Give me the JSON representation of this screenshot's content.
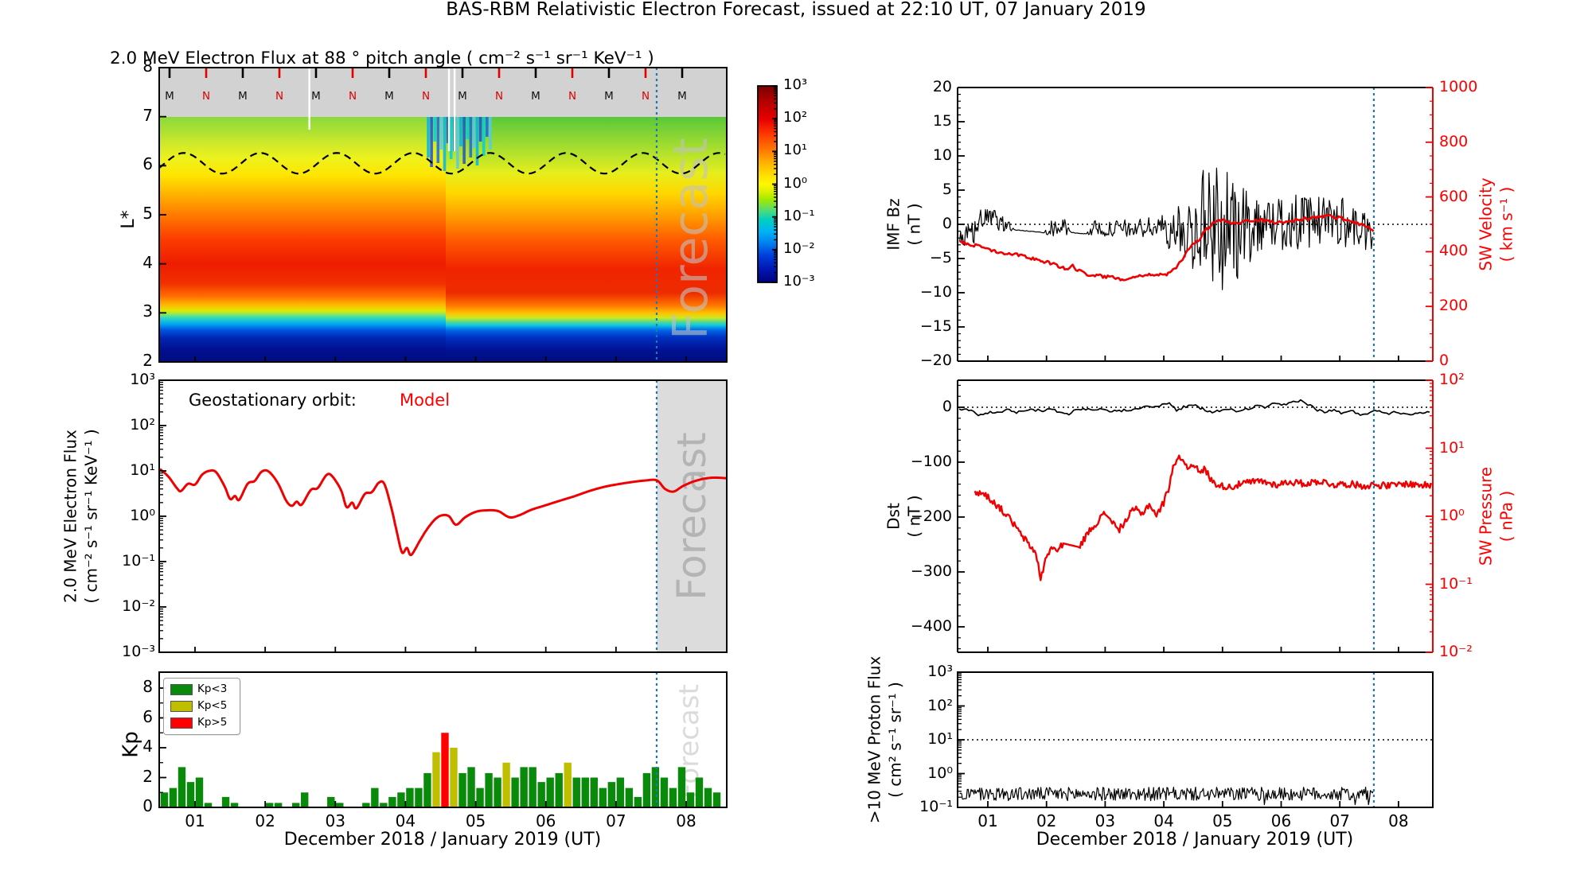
{
  "title": "BAS-RBM Relativistic Electron Forecast, issued at 22:10 UT, 07 January 2019",
  "xlabel": "December 2018 / January 2019 (UT)",
  "x_day_ticks": [
    "01",
    "02",
    "03",
    "04",
    "05",
    "06",
    "07",
    "08"
  ],
  "forecast": {
    "label": "Forecast",
    "start_day": 7.58
  },
  "colors": {
    "model_red": "#f00000",
    "forecast_line_blue": "#1f77b4",
    "kp_green": "#0a8a0a",
    "kp_yellow": "#bfbf00",
    "kp_red": "#ff0000",
    "gray_band": "#d2d2d2",
    "forecast_shade": "#dcdcdc"
  },
  "spectrogram": {
    "title": "2.0 MeV Electron Flux at 88 ° pitch angle ( cm⁻² s⁻¹ sr⁻¹ KeV⁻¹ )",
    "ylabel": "L*",
    "yticks": [
      "8",
      "7",
      "6",
      "5",
      "4",
      "3",
      "2"
    ],
    "marker_labels": [
      "M",
      "N",
      "M",
      "N",
      "M",
      "N",
      "M",
      "N",
      "M",
      "N",
      "M",
      "N",
      "M",
      "N",
      "M"
    ],
    "colorbar_ticks": [
      "10³",
      "10²",
      "10¹",
      "10⁰",
      "10⁻¹",
      "10⁻²",
      "10⁻³"
    ]
  },
  "electron_flux": {
    "ylabel_line1": "2.0 MeV Electron Flux",
    "ylabel_line2": "( cm⁻² s⁻¹ sr⁻¹ KeV⁻¹ )",
    "legend_prefix": "Geostationary orbit:",
    "legend_model": "Model",
    "yticks": [
      "10³",
      "10²",
      "10¹",
      "10⁰",
      "10⁻¹",
      "10⁻²",
      "10⁻³"
    ]
  },
  "kp": {
    "ylabel": "Kp",
    "yticks": [
      "8",
      "6",
      "4",
      "2",
      "0"
    ],
    "legend": [
      {
        "label": "Kp<3",
        "color": "#0a8a0a"
      },
      {
        "label": "Kp<5",
        "color": "#bfbf00"
      },
      {
        "label": "Kp>5",
        "color": "#ff0000"
      }
    ]
  },
  "imf": {
    "ylabel_line1": "IMF Bz",
    "ylabel_line2": "( nT )",
    "yticks": [
      "20",
      "15",
      "10",
      "5",
      "0",
      "−5",
      "−10",
      "−15",
      "−20"
    ]
  },
  "velocity": {
    "ylabel_line1": "SW Velocity",
    "ylabel_line2": "( km s⁻¹ )",
    "yticks": [
      "1000",
      "800",
      "600",
      "400",
      "200",
      "0"
    ]
  },
  "dst": {
    "ylabel_line1": "Dst",
    "ylabel_line2": "( nT )",
    "yticks": [
      "0",
      "−100",
      "−200",
      "−300",
      "−400"
    ]
  },
  "pressure": {
    "ylabel_line1": "SW Pressure",
    "ylabel_line2": "( nPa )",
    "yticks": [
      "10²",
      "10¹",
      "10⁰",
      "10⁻¹",
      "10⁻²"
    ]
  },
  "proton": {
    "ylabel_line1": ">10 MeV Proton Flux",
    "ylabel_line2": "( cm² s⁻¹ sr⁻¹ )",
    "yticks": [
      "10³",
      "10²",
      "10¹",
      "10⁰",
      "10⁻¹"
    ]
  },
  "chart_data": [
    {
      "id": "electron_flux_spectrogram",
      "type": "heatmap",
      "title": "2.0 MeV Electron Flux at 88 ° pitch angle ( cm⁻² s⁻¹ sr⁻¹ KeV⁻¹ )",
      "ylabel": "L*",
      "ylim": [
        2,
        8
      ],
      "xlim_days": [
        0.49,
        8.58
      ],
      "colorbar_range_log10": [
        -3,
        3
      ],
      "gray_band_lstar": [
        7,
        8
      ],
      "dashed_line": {
        "center_lstar": 6.05,
        "amplitude_lstar": 0.21,
        "period_days": 1.09
      },
      "data_gap_days": [
        2.63,
        4.62,
        4.7
      ],
      "storm_depletion_days": [
        4.3,
        5.2
      ],
      "forecast_start_day": 7.58
    },
    {
      "id": "geo_electron_flux",
      "type": "line",
      "color": "#f00000",
      "ylim": [
        0.001,
        1000
      ],
      "yscale": "log",
      "points": [
        [
          0.5,
          11
        ],
        [
          0.62,
          7.5
        ],
        [
          0.74,
          4.2
        ],
        [
          0.8,
          3.6
        ],
        [
          0.9,
          5.2
        ],
        [
          1.0,
          5.0
        ],
        [
          1.1,
          8.2
        ],
        [
          1.2,
          10.0
        ],
        [
          1.3,
          9.4
        ],
        [
          1.42,
          4.6
        ],
        [
          1.5,
          2.4
        ],
        [
          1.57,
          2.8
        ],
        [
          1.63,
          2.3
        ],
        [
          1.75,
          5.2
        ],
        [
          1.85,
          6.0
        ],
        [
          1.95,
          9.6
        ],
        [
          2.05,
          9.7
        ],
        [
          2.18,
          5.4
        ],
        [
          2.3,
          2.2
        ],
        [
          2.38,
          1.7
        ],
        [
          2.45,
          2.1
        ],
        [
          2.52,
          1.8
        ],
        [
          2.65,
          3.8
        ],
        [
          2.75,
          4.2
        ],
        [
          2.87,
          8.0
        ],
        [
          2.95,
          7.8
        ],
        [
          3.08,
          3.8
        ],
        [
          3.16,
          1.6
        ],
        [
          3.24,
          2.0
        ],
        [
          3.3,
          1.5
        ],
        [
          3.42,
          3.1
        ],
        [
          3.52,
          3.4
        ],
        [
          3.62,
          5.5
        ],
        [
          3.7,
          5.1
        ],
        [
          3.8,
          1.5
        ],
        [
          3.87,
          0.5
        ],
        [
          3.95,
          0.16
        ],
        [
          4.02,
          0.2
        ],
        [
          4.08,
          0.14
        ],
        [
          4.2,
          0.28
        ],
        [
          4.3,
          0.5
        ],
        [
          4.42,
          0.85
        ],
        [
          4.52,
          1.05
        ],
        [
          4.62,
          1.0
        ],
        [
          4.72,
          0.65
        ],
        [
          4.85,
          0.95
        ],
        [
          5.0,
          1.25
        ],
        [
          5.15,
          1.35
        ],
        [
          5.32,
          1.3
        ],
        [
          5.48,
          0.95
        ],
        [
          5.62,
          1.05
        ],
        [
          5.8,
          1.4
        ],
        [
          6.0,
          1.75
        ],
        [
          6.2,
          2.2
        ],
        [
          6.42,
          2.8
        ],
        [
          6.62,
          3.6
        ],
        [
          6.82,
          4.4
        ],
        [
          7.0,
          5.0
        ],
        [
          7.2,
          5.6
        ],
        [
          7.4,
          6.1
        ],
        [
          7.58,
          6.2
        ],
        [
          7.7,
          4.0
        ],
        [
          7.82,
          3.5
        ],
        [
          7.95,
          4.6
        ],
        [
          8.1,
          5.8
        ],
        [
          8.25,
          6.7
        ],
        [
          8.4,
          7.1
        ],
        [
          8.58,
          6.9
        ]
      ]
    },
    {
      "id": "kp",
      "type": "bar",
      "start_day": 0.5,
      "step_days": 0.125,
      "ylim": [
        0,
        9
      ],
      "values": [
        1.0,
        1.3,
        2.7,
        1.7,
        2.0,
        0.3,
        0.0,
        0.7,
        0.3,
        0.0,
        0.0,
        0.0,
        0.3,
        0.3,
        0.0,
        0.3,
        1.0,
        0.0,
        0.0,
        0.7,
        0.3,
        0.0,
        0.0,
        0.3,
        1.3,
        0.3,
        0.7,
        1.0,
        1.3,
        1.3,
        2.3,
        3.7,
        5.0,
        4.0,
        2.3,
        2.7,
        1.3,
        2.3,
        2.0,
        3.0,
        2.0,
        2.7,
        2.7,
        1.7,
        2.0,
        2.3,
        3.0,
        2.0,
        2.0,
        2.0,
        1.3,
        1.7,
        2.0,
        1.3,
        0.7,
        2.3,
        2.7,
        2.0,
        1.3,
        2.7,
        1.0,
        2.0,
        1.3,
        1.0
      ]
    },
    {
      "id": "imf_bz",
      "type": "line",
      "color": "#000000",
      "ylim": [
        -20,
        20
      ],
      "envelope_day_mean_amp": [
        [
          0.52,
          -2.5,
          1.3
        ],
        [
          0.7,
          -2.0,
          2.2
        ],
        [
          0.85,
          0.5,
          1.6
        ],
        [
          1.0,
          1.0,
          1.2
        ],
        [
          1.15,
          0.6,
          1.4
        ],
        [
          1.35,
          -0.3,
          1.0
        ],
        [
          1.45,
          -0.8,
          0.05
        ],
        [
          1.95,
          -1.2,
          0.05
        ],
        [
          2.05,
          -0.6,
          1.1
        ],
        [
          2.3,
          -0.4,
          1.4
        ],
        [
          2.42,
          -1.2,
          0.05
        ],
        [
          2.68,
          -1.4,
          0.05
        ],
        [
          2.8,
          -0.6,
          1.2
        ],
        [
          3.0,
          -0.8,
          1.0
        ],
        [
          3.2,
          -0.6,
          1.2
        ],
        [
          3.45,
          -0.7,
          1.4
        ],
        [
          3.7,
          -0.5,
          1.5
        ],
        [
          3.95,
          -0.4,
          1.8
        ],
        [
          4.15,
          -1.2,
          3.0
        ],
        [
          4.35,
          -1.0,
          4.5
        ],
        [
          4.55,
          -0.5,
          6.5
        ],
        [
          4.75,
          0.5,
          9.0
        ],
        [
          4.95,
          0.0,
          10.0
        ],
        [
          5.1,
          -0.8,
          8.5
        ],
        [
          5.3,
          -1.5,
          7.0
        ],
        [
          5.5,
          0.0,
          5.0
        ],
        [
          5.7,
          0.5,
          4.2
        ],
        [
          5.95,
          0.0,
          4.0
        ],
        [
          6.2,
          0.5,
          4.4
        ],
        [
          6.5,
          0.2,
          3.8
        ],
        [
          6.8,
          1.0,
          3.4
        ],
        [
          7.0,
          0.5,
          3.8
        ],
        [
          7.2,
          0.0,
          3.8
        ],
        [
          7.4,
          -1.0,
          3.0
        ],
        [
          7.58,
          -2.5,
          1.5
        ]
      ]
    },
    {
      "id": "sw_velocity",
      "type": "line",
      "color": "#f00000",
      "ylim": [
        0,
        1000
      ],
      "points": [
        [
          0.52,
          440
        ],
        [
          0.7,
          420
        ],
        [
          0.85,
          425
        ],
        [
          1.0,
          410
        ],
        [
          1.2,
          398
        ],
        [
          1.4,
          392
        ],
        [
          1.6,
          388
        ],
        [
          1.8,
          372
        ],
        [
          2.0,
          362
        ],
        [
          2.2,
          348
        ],
        [
          2.35,
          335
        ],
        [
          2.45,
          350
        ],
        [
          2.52,
          332
        ],
        [
          2.7,
          318
        ],
        [
          2.9,
          312
        ],
        [
          3.1,
          306
        ],
        [
          3.3,
          300
        ],
        [
          3.5,
          308
        ],
        [
          3.7,
          318
        ],
        [
          3.9,
          314
        ],
        [
          4.05,
          318
        ],
        [
          4.2,
          335
        ],
        [
          4.32,
          375
        ],
        [
          4.45,
          420
        ],
        [
          4.6,
          445
        ],
        [
          4.72,
          480
        ],
        [
          4.85,
          505
        ],
        [
          5.0,
          515
        ],
        [
          5.2,
          505
        ],
        [
          5.4,
          512
        ],
        [
          5.6,
          516
        ],
        [
          5.8,
          510
        ],
        [
          6.0,
          506
        ],
        [
          6.2,
          514
        ],
        [
          6.4,
          520
        ],
        [
          6.6,
          526
        ],
        [
          6.8,
          530
        ],
        [
          7.0,
          524
        ],
        [
          7.2,
          510
        ],
        [
          7.4,
          498
        ],
        [
          7.58,
          478
        ]
      ]
    },
    {
      "id": "dst",
      "type": "line",
      "color": "#000000",
      "ylim": [
        -445,
        49
      ],
      "points": [
        [
          0.52,
          -3
        ],
        [
          0.7,
          -6
        ],
        [
          0.9,
          -16
        ],
        [
          1.05,
          -9
        ],
        [
          1.18,
          -11
        ],
        [
          1.32,
          -5
        ],
        [
          1.48,
          -9
        ],
        [
          1.62,
          -7
        ],
        [
          1.78,
          -4
        ],
        [
          1.92,
          -7
        ],
        [
          2.05,
          -3
        ],
        [
          2.2,
          -8
        ],
        [
          2.35,
          -13
        ],
        [
          2.5,
          -6
        ],
        [
          2.65,
          -4
        ],
        [
          2.8,
          -6
        ],
        [
          2.95,
          -4
        ],
        [
          3.1,
          -8
        ],
        [
          3.25,
          -6
        ],
        [
          3.42,
          -4
        ],
        [
          3.58,
          -2
        ],
        [
          3.72,
          4
        ],
        [
          3.88,
          1
        ],
        [
          4.0,
          4
        ],
        [
          4.1,
          9
        ],
        [
          4.22,
          -6
        ],
        [
          4.35,
          1
        ],
        [
          4.5,
          4
        ],
        [
          4.65,
          -3
        ],
        [
          4.8,
          -9
        ],
        [
          4.95,
          -6
        ],
        [
          5.1,
          -4
        ],
        [
          5.25,
          -7
        ],
        [
          5.42,
          -3
        ],
        [
          5.58,
          2
        ],
        [
          5.72,
          0
        ],
        [
          5.88,
          6
        ],
        [
          6.02,
          3
        ],
        [
          6.18,
          9
        ],
        [
          6.32,
          13
        ],
        [
          6.45,
          6
        ],
        [
          6.6,
          -4
        ],
        [
          6.75,
          -9
        ],
        [
          6.9,
          -5
        ],
        [
          7.05,
          -11
        ],
        [
          7.2,
          -7
        ],
        [
          7.35,
          -13
        ],
        [
          7.52,
          -9
        ],
        [
          7.68,
          -6
        ],
        [
          7.82,
          -11
        ],
        [
          7.98,
          -8
        ],
        [
          8.15,
          -13
        ],
        [
          8.32,
          -9
        ],
        [
          8.58,
          -11
        ]
      ]
    },
    {
      "id": "sw_pressure",
      "type": "line",
      "color": "#f00000",
      "ylim": [
        0.01,
        100
      ],
      "yscale": "log",
      "data_gap_days": [
        2.28,
        2.56
      ],
      "points": [
        [
          0.78,
          2.3
        ],
        [
          0.95,
          2.1
        ],
        [
          1.1,
          1.6
        ],
        [
          1.25,
          1.2
        ],
        [
          1.4,
          0.85
        ],
        [
          1.55,
          0.55
        ],
        [
          1.7,
          0.38
        ],
        [
          1.82,
          0.28
        ],
        [
          1.9,
          0.11
        ],
        [
          1.98,
          0.22
        ],
        [
          2.08,
          0.35
        ],
        [
          2.2,
          0.3
        ],
        [
          2.28,
          0.4
        ],
        [
          2.56,
          0.35
        ],
        [
          2.7,
          0.55
        ],
        [
          2.85,
          0.8
        ],
        [
          3.0,
          1.1
        ],
        [
          3.12,
          0.85
        ],
        [
          3.22,
          0.6
        ],
        [
          3.35,
          0.85
        ],
        [
          3.5,
          1.3
        ],
        [
          3.62,
          1.05
        ],
        [
          3.75,
          1.5
        ],
        [
          3.88,
          1.0
        ],
        [
          4.0,
          1.6
        ],
        [
          4.08,
          2.5
        ],
        [
          4.18,
          6.0
        ],
        [
          4.3,
          7.5
        ],
        [
          4.4,
          5.0
        ],
        [
          4.5,
          6.2
        ],
        [
          4.6,
          4.2
        ],
        [
          4.7,
          5.0
        ],
        [
          4.8,
          3.4
        ],
        [
          4.95,
          2.8
        ],
        [
          5.15,
          2.7
        ],
        [
          5.4,
          3.1
        ],
        [
          5.65,
          3.3
        ],
        [
          5.9,
          2.9
        ],
        [
          6.15,
          3.2
        ],
        [
          6.4,
          3.0
        ],
        [
          6.65,
          3.3
        ],
        [
          6.9,
          2.9
        ],
        [
          7.15,
          3.0
        ],
        [
          7.4,
          2.8
        ],
        [
          7.6,
          2.9
        ],
        [
          7.85,
          2.8
        ],
        [
          8.1,
          3.0
        ],
        [
          8.35,
          2.9
        ],
        [
          8.58,
          2.8
        ]
      ]
    },
    {
      "id": "proton_flux",
      "type": "line",
      "color": "#000000",
      "ylim": [
        0.1,
        1000
      ],
      "yscale": "log",
      "baseline_flux": 0.25,
      "noise_decades": 0.2,
      "threshold_line_flux": 10,
      "start_day": 0.52,
      "end_day": 7.58
    }
  ]
}
